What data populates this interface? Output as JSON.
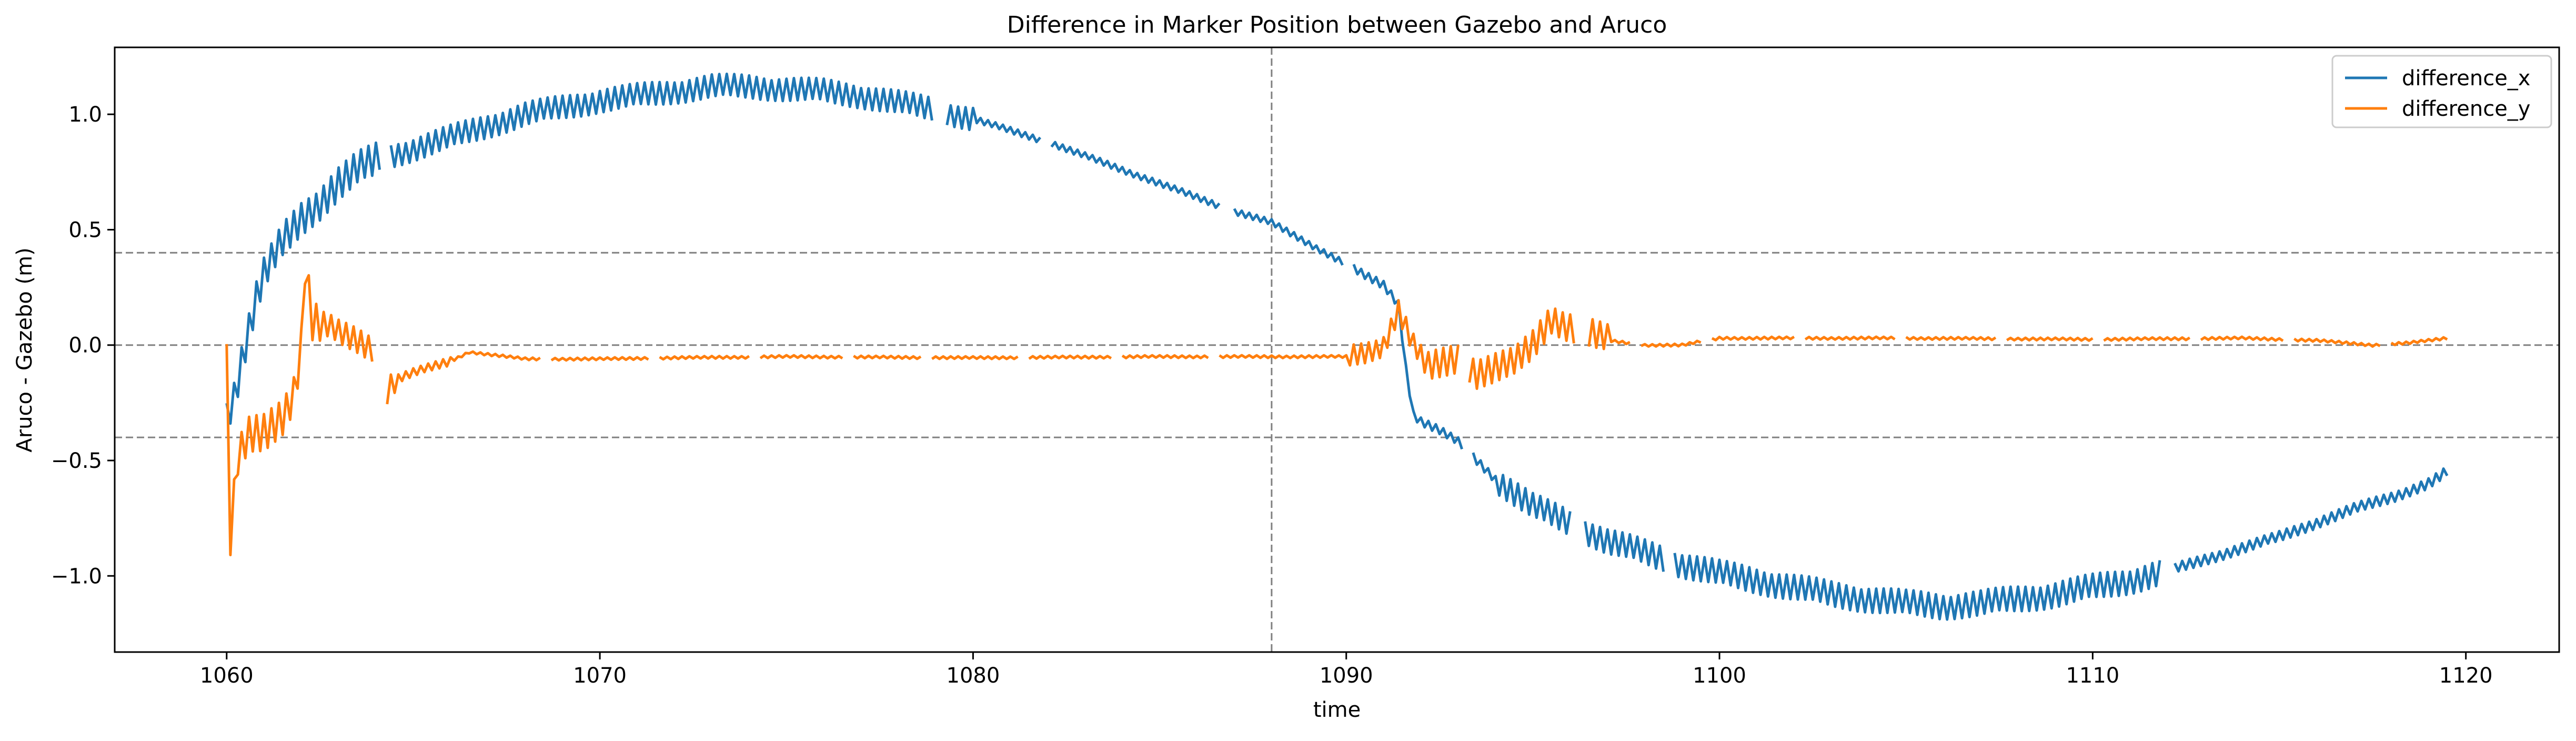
{
  "chart_data": {
    "type": "line",
    "title": "Difference in Marker Position between Gazebo and Aruco",
    "xlabel": "time",
    "ylabel": "Aruco - Gazebo (m)",
    "xlim": [
      1057,
      1122.5
    ],
    "ylim": [
      -1.33,
      1.29
    ],
    "xticks": [
      1060,
      1070,
      1080,
      1090,
      1100,
      1110,
      1120
    ],
    "yticks": [
      1.0,
      0.5,
      0.0,
      -0.5,
      -1.0
    ],
    "xtick_labels": [
      "1060",
      "1070",
      "1080",
      "1090",
      "1100",
      "1110",
      "1120"
    ],
    "ytick_labels": [
      "1.0",
      "0.5",
      "0.0",
      "−0.5",
      "−1.0"
    ],
    "grid": false,
    "legend_position": "top-right",
    "reference_lines": {
      "horizontal": [
        0.4,
        0.0,
        -0.4
      ],
      "vertical": [
        1088
      ],
      "style": "dashed",
      "color": "#808080"
    },
    "series": [
      {
        "name": "difference_x",
        "color": "#1f77b4",
        "anchors": [
          [
            1060.0,
            -0.3
          ],
          [
            1060.2,
            -0.22
          ],
          [
            1060.5,
            0.0
          ],
          [
            1060.8,
            0.2
          ],
          [
            1061.0,
            0.3
          ],
          [
            1061.5,
            0.45
          ],
          [
            1062.0,
            0.55
          ],
          [
            1062.5,
            0.62
          ],
          [
            1063.0,
            0.7
          ],
          [
            1063.5,
            0.76
          ],
          [
            1064.0,
            0.8
          ],
          [
            1065.0,
            0.85
          ],
          [
            1066.0,
            0.9
          ],
          [
            1067.0,
            0.95
          ],
          [
            1068.0,
            1.0
          ],
          [
            1069.0,
            1.03
          ],
          [
            1070.0,
            1.06
          ],
          [
            1071.0,
            1.08
          ],
          [
            1072.0,
            1.1
          ],
          [
            1073.0,
            1.12
          ],
          [
            1074.0,
            1.12
          ],
          [
            1075.0,
            1.11
          ],
          [
            1076.0,
            1.1
          ],
          [
            1077.0,
            1.08
          ],
          [
            1078.0,
            1.05
          ],
          [
            1079.0,
            1.02
          ],
          [
            1080.0,
            0.98
          ],
          [
            1081.0,
            0.93
          ],
          [
            1082.0,
            0.88
          ],
          [
            1083.0,
            0.82
          ],
          [
            1084.0,
            0.76
          ],
          [
            1085.0,
            0.7
          ],
          [
            1086.0,
            0.64
          ],
          [
            1087.0,
            0.58
          ],
          [
            1088.0,
            0.53
          ],
          [
            1089.0,
            0.44
          ],
          [
            1090.0,
            0.35
          ],
          [
            1090.5,
            0.3
          ],
          [
            1091.0,
            0.26
          ],
          [
            1091.4,
            0.18
          ],
          [
            1091.6,
            -0.1
          ],
          [
            1091.8,
            -0.3
          ],
          [
            1092.0,
            -0.33
          ],
          [
            1092.5,
            -0.37
          ],
          [
            1093.0,
            -0.42
          ],
          [
            1093.5,
            -0.5
          ],
          [
            1094.0,
            -0.58
          ],
          [
            1095.0,
            -0.7
          ],
          [
            1096.0,
            -0.77
          ],
          [
            1097.0,
            -0.85
          ],
          [
            1098.0,
            -0.9
          ],
          [
            1099.0,
            -0.95
          ],
          [
            1100.0,
            -0.99
          ],
          [
            1101.0,
            -1.02
          ],
          [
            1102.0,
            -1.05
          ],
          [
            1103.0,
            -1.08
          ],
          [
            1104.0,
            -1.1
          ],
          [
            1105.0,
            -1.12
          ],
          [
            1106.0,
            -1.13
          ],
          [
            1107.0,
            -1.12
          ],
          [
            1108.0,
            -1.1
          ],
          [
            1109.0,
            -1.08
          ],
          [
            1110.0,
            -1.05
          ],
          [
            1111.0,
            -1.02
          ],
          [
            1112.0,
            -0.98
          ],
          [
            1113.0,
            -0.93
          ],
          [
            1114.0,
            -0.88
          ],
          [
            1115.0,
            -0.83
          ],
          [
            1116.0,
            -0.77
          ],
          [
            1117.0,
            -0.71
          ],
          [
            1118.0,
            -0.66
          ],
          [
            1119.0,
            -0.6
          ],
          [
            1119.5,
            -0.55
          ]
        ]
      },
      {
        "name": "difference_y",
        "color": "#ff7f0e",
        "anchors": [
          [
            1060.0,
            -0.08
          ],
          [
            1060.1,
            -0.84
          ],
          [
            1060.3,
            -0.5
          ],
          [
            1060.6,
            -0.4
          ],
          [
            1061.0,
            -0.38
          ],
          [
            1061.5,
            -0.3
          ],
          [
            1061.8,
            -0.2
          ],
          [
            1062.0,
            0.0
          ],
          [
            1062.1,
            0.35
          ],
          [
            1062.3,
            0.1
          ],
          [
            1062.7,
            0.08
          ],
          [
            1063.0,
            0.05
          ],
          [
            1063.5,
            0.02
          ],
          [
            1064.0,
            -0.02
          ],
          [
            1064.2,
            -0.22
          ],
          [
            1064.5,
            -0.15
          ],
          [
            1065.0,
            -0.12
          ],
          [
            1066.0,
            -0.07
          ],
          [
            1066.5,
            -0.03
          ],
          [
            1067.0,
            -0.04
          ],
          [
            1068.0,
            -0.06
          ],
          [
            1070.0,
            -0.06
          ],
          [
            1072.0,
            -0.055
          ],
          [
            1075.0,
            -0.05
          ],
          [
            1080.0,
            -0.055
          ],
          [
            1085.0,
            -0.05
          ],
          [
            1088.0,
            -0.05
          ],
          [
            1090.0,
            -0.05
          ],
          [
            1090.5,
            -0.03
          ],
          [
            1091.0,
            0.0
          ],
          [
            1091.4,
            0.15
          ],
          [
            1091.8,
            0.0
          ],
          [
            1092.2,
            -0.1
          ],
          [
            1093.0,
            -0.05
          ],
          [
            1093.5,
            -0.12
          ],
          [
            1094.0,
            -0.1
          ],
          [
            1094.5,
            -0.08
          ],
          [
            1095.0,
            0.0
          ],
          [
            1095.5,
            0.12
          ],
          [
            1096.0,
            0.08
          ],
          [
            1096.5,
            0.05
          ],
          [
            1097.0,
            0.02
          ],
          [
            1098.0,
            0.0
          ],
          [
            1099.0,
            0.0
          ],
          [
            1100.0,
            0.03
          ],
          [
            1102.0,
            0.03
          ],
          [
            1105.0,
            0.03
          ],
          [
            1110.0,
            0.025
          ],
          [
            1114.0,
            0.03
          ],
          [
            1116.0,
            0.02
          ],
          [
            1117.5,
            0.0
          ],
          [
            1118.5,
            0.01
          ],
          [
            1119.5,
            0.03
          ]
        ]
      }
    ]
  }
}
